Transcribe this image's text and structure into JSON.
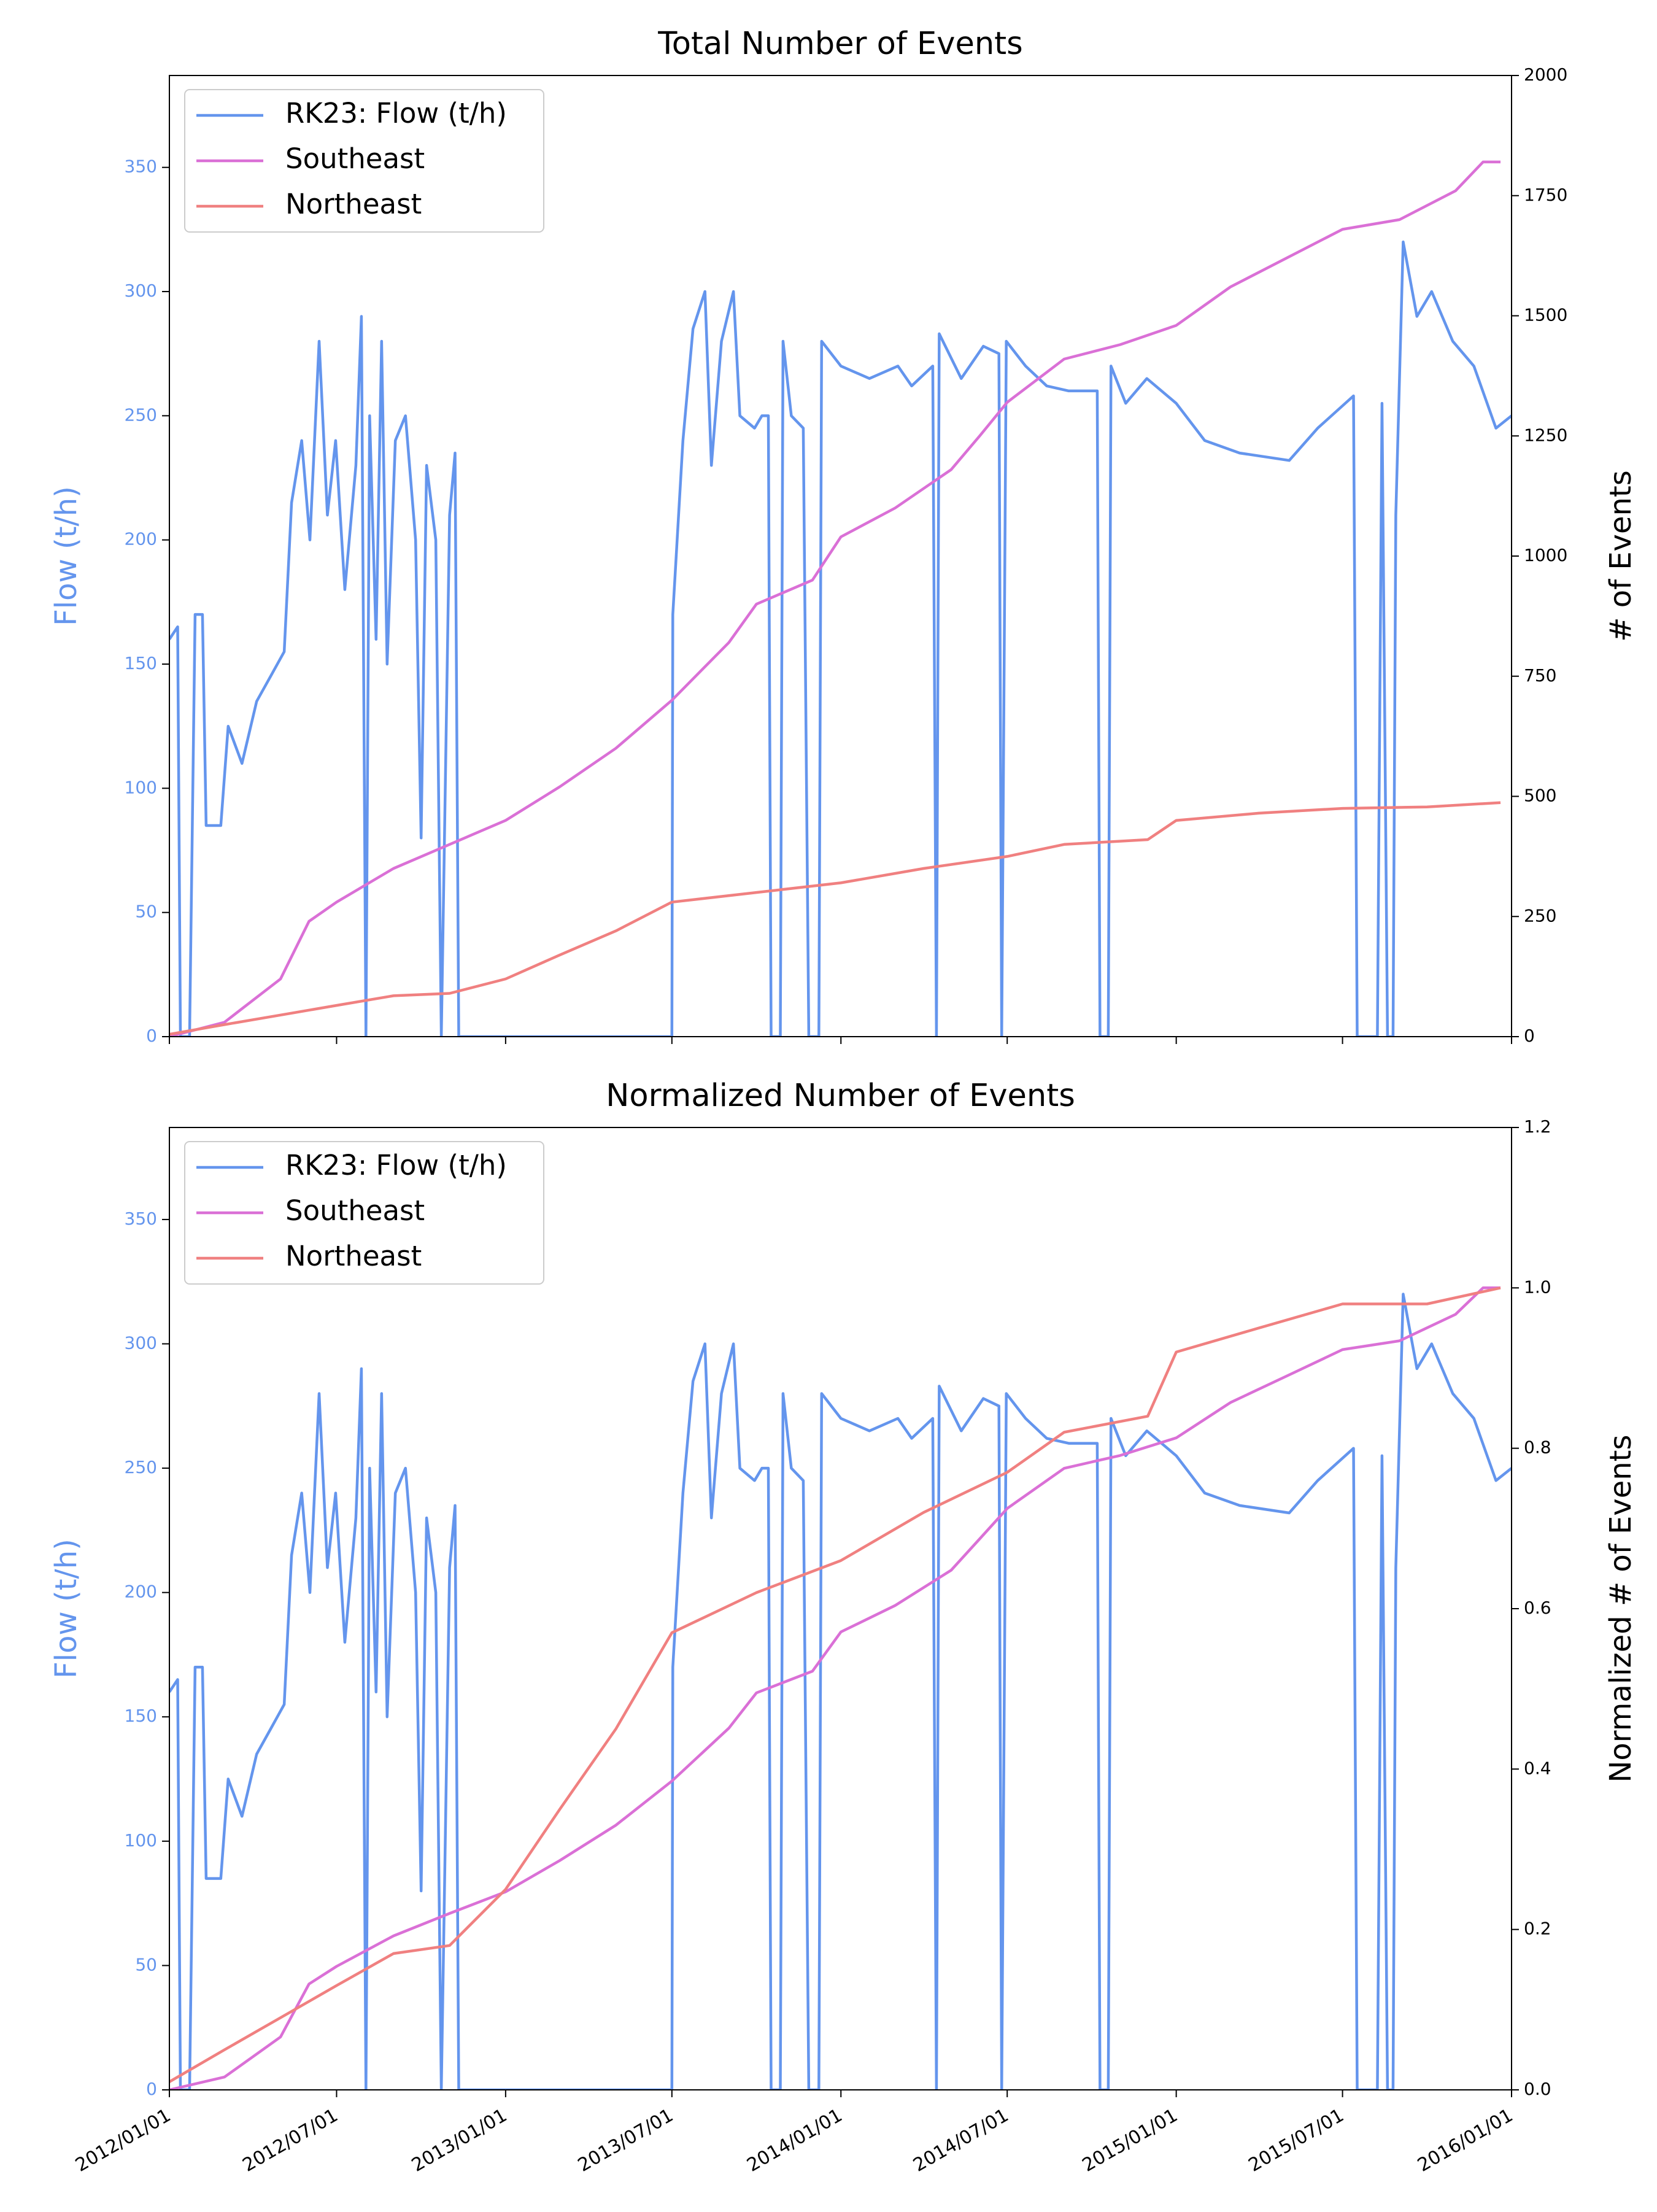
{
  "chart_data": [
    {
      "type": "line",
      "title": "Total Number of Events",
      "ylabel": "Flow (t/h)",
      "y2label": "# of Events",
      "legend": "upper left",
      "show_xtick_labels": false,
      "xlim": [
        "2012/01/01",
        "2016/01/01"
      ],
      "xticks": [
        "2012/01/01",
        "2012/07/01",
        "2013/01/01",
        "2013/07/01",
        "2014/01/01",
        "2014/07/01",
        "2015/01/01",
        "2015/07/01",
        "2016/01/01"
      ],
      "ylim": [
        0,
        387
      ],
      "yticks": [
        0,
        50,
        100,
        150,
        200,
        250,
        300,
        350
      ],
      "y2lim": [
        0,
        2000
      ],
      "y2ticks": [
        0,
        250,
        500,
        750,
        1000,
        1250,
        1500,
        1750,
        2000
      ],
      "series": [
        {
          "name": "RK23: Flow (t/h)",
          "color": "#6495ed",
          "x": [
            "2012/01/01",
            "2012/01/10",
            "2012/01/13",
            "2012/01/23",
            "2012/01/29",
            "2012/02/06",
            "2012/02/10",
            "2012/02/26",
            "2012/03/05",
            "2012/03/20",
            "2012/04/05",
            "2012/04/20",
            "2012/05/05",
            "2012/05/13",
            "2012/05/24",
            "2012/06/02",
            "2012/06/12",
            "2012/06/21",
            "2012/06/30",
            "2012/07/10",
            "2012/07/22",
            "2012/07/28",
            "2012/08/02",
            "2012/08/06",
            "2012/08/13",
            "2012/08/19",
            "2012/08/25",
            "2012/09/03",
            "2012/09/14",
            "2012/09/25",
            "2012/10/01",
            "2012/10/07",
            "2012/10/17",
            "2012/10/23",
            "2012/11/01",
            "2012/11/07",
            "2012/11/11",
            "2013/07/01",
            "2013/07/02",
            "2013/07/13",
            "2013/07/24",
            "2013/08/06",
            "2013/08/13",
            "2013/08/24",
            "2013/09/06",
            "2013/09/13",
            "2013/09/29",
            "2013/10/07",
            "2013/10/14",
            "2013/10/17",
            "2013/10/27",
            "2013/10/30",
            "2013/11/08",
            "2013/11/21",
            "2013/11/27",
            "2013/12/08",
            "2013/12/11",
            "2014/01/01",
            "2014/02/01",
            "2014/03/04",
            "2014/03/19",
            "2014/04/11",
            "2014/04/15",
            "2014/04/18",
            "2014/05/12",
            "2014/06/05",
            "2014/06/22",
            "2014/06/25",
            "2014/06/30",
            "2014/07/21",
            "2014/08/13",
            "2014/09/06",
            "2014/10/07",
            "2014/10/10",
            "2014/10/19",
            "2014/10/22",
            "2014/11/07",
            "2014/11/30",
            "2015/01/01",
            "2015/02/01",
            "2015/03/11",
            "2015/05/04",
            "2015/06/04",
            "2015/07/13",
            "2015/07/17",
            "2015/08/08",
            "2015/08/13",
            "2015/08/19",
            "2015/08/25",
            "2015/08/28",
            "2015/09/05",
            "2015/09/20",
            "2015/10/06",
            "2015/10/29",
            "2015/11/21",
            "2015/12/15",
            "2016/01/01"
          ],
          "values": [
            160,
            165,
            0,
            0,
            170,
            170,
            85,
            85,
            125,
            110,
            135,
            145,
            155,
            215,
            240,
            200,
            280,
            210,
            240,
            180,
            230,
            290,
            0,
            250,
            160,
            280,
            150,
            240,
            250,
            200,
            80,
            230,
            200,
            0,
            210,
            235,
            0,
            0,
            170,
            240,
            285,
            300,
            230,
            280,
            300,
            250,
            245,
            250,
            250,
            0,
            0,
            280,
            250,
            245,
            0,
            0,
            280,
            270,
            265,
            270,
            262,
            270,
            0,
            283,
            265,
            278,
            275,
            0,
            280,
            270,
            262,
            260,
            260,
            0,
            0,
            270,
            255,
            265,
            255,
            240,
            235,
            232,
            245,
            258,
            0,
            0,
            255,
            0,
            0,
            210,
            320,
            290,
            300,
            280,
            270,
            245,
            250
          ]
        },
        {
          "name": "Southeast",
          "color": "#da70d6",
          "axis": "y2",
          "x": [
            "2012/01/01",
            "2012/03/01",
            "2012/05/01",
            "2012/06/01",
            "2012/07/01",
            "2012/09/01",
            "2012/11/01",
            "2013/01/01",
            "2013/03/01",
            "2013/05/01",
            "2013/07/01",
            "2013/09/01",
            "2013/10/01",
            "2013/12/01",
            "2014/01/01",
            "2014/03/01",
            "2014/05/01",
            "2014/06/01",
            "2014/07/01",
            "2014/09/01",
            "2014/11/01",
            "2015/01/01",
            "2015/03/01",
            "2015/05/01",
            "2015/07/01",
            "2015/09/01",
            "2015/11/01",
            "2015/12/01",
            "2015/12/20"
          ],
          "values": [
            0,
            30,
            120,
            240,
            280,
            350,
            400,
            450,
            520,
            600,
            700,
            820,
            900,
            950,
            1040,
            1100,
            1180,
            1250,
            1320,
            1410,
            1440,
            1480,
            1560,
            1620,
            1680,
            1700,
            1760,
            1820,
            1820
          ]
        },
        {
          "name": "Northeast",
          "color": "#f08080",
          "axis": "y2",
          "x": [
            "2012/01/01",
            "2012/03/01",
            "2012/05/01",
            "2012/07/01",
            "2012/09/01",
            "2012/11/01",
            "2013/01/01",
            "2013/03/01",
            "2013/05/01",
            "2013/07/01",
            "2013/10/01",
            "2014/01/01",
            "2014/04/01",
            "2014/07/01",
            "2014/09/01",
            "2014/12/01",
            "2015/01/01",
            "2015/04/01",
            "2015/07/01",
            "2015/10/01",
            "2015/12/20"
          ],
          "values": [
            5,
            25,
            45,
            65,
            85,
            90,
            120,
            170,
            220,
            280,
            300,
            320,
            350,
            375,
            400,
            410,
            450,
            465,
            475,
            478,
            487
          ]
        }
      ]
    },
    {
      "type": "line",
      "title": "Normalized Number of Events",
      "ylabel": "Flow (t/h)",
      "y2label": "Normalized # of Events",
      "legend": "upper left",
      "show_xtick_labels": true,
      "xlim": [
        "2012/01/01",
        "2016/01/01"
      ],
      "xticks": [
        "2012/01/01",
        "2012/07/01",
        "2013/01/01",
        "2013/07/01",
        "2014/01/01",
        "2014/07/01",
        "2015/01/01",
        "2015/07/01",
        "2016/01/01"
      ],
      "ylim": [
        0,
        387
      ],
      "yticks": [
        0,
        50,
        100,
        150,
        200,
        250,
        300,
        350
      ],
      "y2lim": [
        0,
        1.2
      ],
      "y2ticks": [
        {
          "value": 0,
          "label": "0.0"
        },
        0.2,
        0.4,
        0.6,
        0.8,
        {
          "value": 1,
          "label": "1.0"
        },
        1.2
      ],
      "series": [
        {
          "name": "RK23: Flow (t/h)",
          "color": "#6495ed",
          "x": [
            "2012/01/01",
            "2012/01/10",
            "2012/01/13",
            "2012/01/23",
            "2012/01/29",
            "2012/02/06",
            "2012/02/10",
            "2012/02/26",
            "2012/03/05",
            "2012/03/20",
            "2012/04/05",
            "2012/04/20",
            "2012/05/05",
            "2012/05/13",
            "2012/05/24",
            "2012/06/02",
            "2012/06/12",
            "2012/06/21",
            "2012/06/30",
            "2012/07/10",
            "2012/07/22",
            "2012/07/28",
            "2012/08/02",
            "2012/08/06",
            "2012/08/13",
            "2012/08/19",
            "2012/08/25",
            "2012/09/03",
            "2012/09/14",
            "2012/09/25",
            "2012/10/01",
            "2012/10/07",
            "2012/10/17",
            "2012/10/23",
            "2012/11/01",
            "2012/11/07",
            "2012/11/11",
            "2013/07/01",
            "2013/07/02",
            "2013/07/13",
            "2013/07/24",
            "2013/08/06",
            "2013/08/13",
            "2013/08/24",
            "2013/09/06",
            "2013/09/13",
            "2013/09/29",
            "2013/10/07",
            "2013/10/14",
            "2013/10/17",
            "2013/10/27",
            "2013/10/30",
            "2013/11/08",
            "2013/11/21",
            "2013/11/27",
            "2013/12/08",
            "2013/12/11",
            "2014/01/01",
            "2014/02/01",
            "2014/03/04",
            "2014/03/19",
            "2014/04/11",
            "2014/04/15",
            "2014/04/18",
            "2014/05/12",
            "2014/06/05",
            "2014/06/22",
            "2014/06/25",
            "2014/06/30",
            "2014/07/21",
            "2014/08/13",
            "2014/09/06",
            "2014/10/07",
            "2014/10/10",
            "2014/10/19",
            "2014/10/22",
            "2014/11/07",
            "2014/11/30",
            "2015/01/01",
            "2015/02/01",
            "2015/03/11",
            "2015/05/04",
            "2015/06/04",
            "2015/07/13",
            "2015/07/17",
            "2015/08/08",
            "2015/08/13",
            "2015/08/19",
            "2015/08/25",
            "2015/08/28",
            "2015/09/05",
            "2015/09/20",
            "2015/10/06",
            "2015/10/29",
            "2015/11/21",
            "2015/12/15",
            "2016/01/01"
          ],
          "values": [
            160,
            165,
            0,
            0,
            170,
            170,
            85,
            85,
            125,
            110,
            135,
            145,
            155,
            215,
            240,
            200,
            280,
            210,
            240,
            180,
            230,
            290,
            0,
            250,
            160,
            280,
            150,
            240,
            250,
            200,
            80,
            230,
            200,
            0,
            210,
            235,
            0,
            0,
            170,
            240,
            285,
            300,
            230,
            280,
            300,
            250,
            245,
            250,
            250,
            0,
            0,
            280,
            250,
            245,
            0,
            0,
            280,
            270,
            265,
            270,
            262,
            270,
            0,
            283,
            265,
            278,
            275,
            0,
            280,
            270,
            262,
            260,
            260,
            0,
            0,
            270,
            255,
            265,
            255,
            240,
            235,
            232,
            245,
            258,
            0,
            0,
            255,
            0,
            0,
            210,
            320,
            290,
            300,
            280,
            270,
            245,
            250
          ]
        },
        {
          "name": "Southeast",
          "color": "#da70d6",
          "axis": "y2",
          "x": [
            "2012/01/01",
            "2012/03/01",
            "2012/05/01",
            "2012/06/01",
            "2012/07/01",
            "2012/09/01",
            "2012/11/01",
            "2013/01/01",
            "2013/03/01",
            "2013/05/01",
            "2013/07/01",
            "2013/09/01",
            "2013/10/01",
            "2013/12/01",
            "2014/01/01",
            "2014/03/01",
            "2014/05/01",
            "2014/06/01",
            "2014/07/01",
            "2014/09/01",
            "2014/11/01",
            "2015/01/01",
            "2015/03/01",
            "2015/05/01",
            "2015/07/01",
            "2015/09/01",
            "2015/11/01",
            "2015/12/01",
            "2015/12/20"
          ],
          "values": [
            0,
            0.016,
            0.066,
            0.132,
            0.154,
            0.192,
            0.22,
            0.247,
            0.286,
            0.33,
            0.385,
            0.451,
            0.495,
            0.522,
            0.571,
            0.604,
            0.648,
            0.687,
            0.725,
            0.775,
            0.791,
            0.813,
            0.857,
            0.89,
            0.923,
            0.934,
            0.967,
            1,
            1
          ]
        },
        {
          "name": "Northeast",
          "color": "#f08080",
          "axis": "y2",
          "x": [
            "2012/01/01",
            "2012/03/01",
            "2012/05/01",
            "2012/07/01",
            "2012/09/01",
            "2012/11/01",
            "2013/01/01",
            "2013/03/01",
            "2013/05/01",
            "2013/07/01",
            "2013/10/01",
            "2014/01/01",
            "2014/04/01",
            "2014/07/01",
            "2014/09/01",
            "2014/12/01",
            "2015/01/01",
            "2015/04/01",
            "2015/07/01",
            "2015/10/01",
            "2015/12/20"
          ],
          "values": [
            0.01,
            0.05,
            0.09,
            0.13,
            0.17,
            0.18,
            0.25,
            0.35,
            0.45,
            0.57,
            0.62,
            0.66,
            0.72,
            0.77,
            0.82,
            0.84,
            0.92,
            0.95,
            0.98,
            0.98,
            1
          ]
        }
      ]
    }
  ]
}
